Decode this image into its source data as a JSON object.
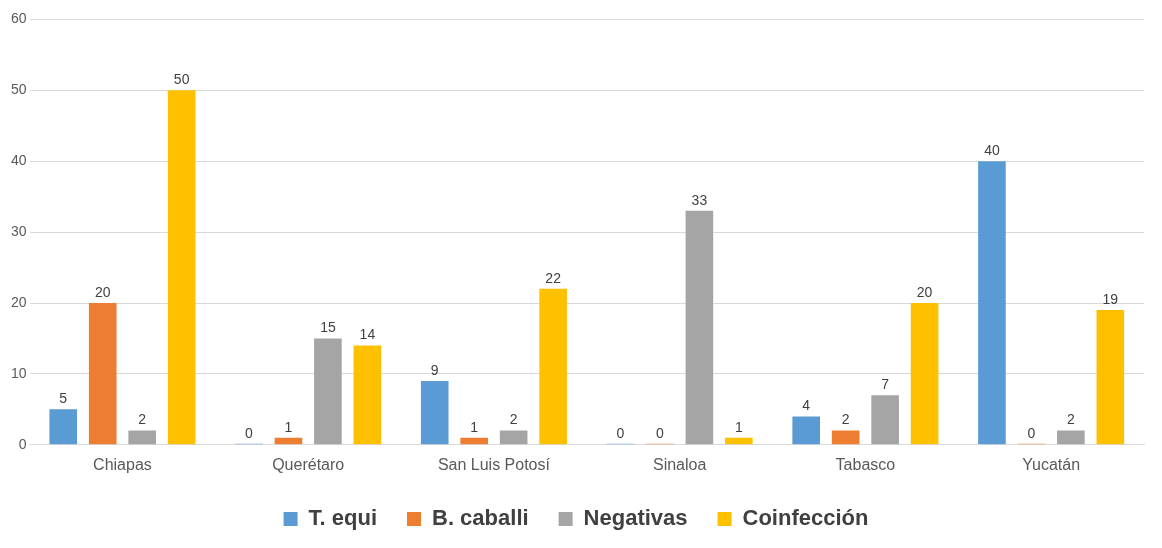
{
  "chart_data": {
    "type": "bar",
    "categories": [
      "Chiapas",
      "Querétaro",
      "San Luis Potosí",
      "Sinaloa",
      "Tabasco",
      "Yucatán"
    ],
    "series": [
      {
        "name": "T. equi",
        "color": "#5b9bd5",
        "values": [
          5,
          0,
          9,
          0,
          4,
          40
        ]
      },
      {
        "name": "B. caballi",
        "color": "#ed7d31",
        "values": [
          20,
          1,
          1,
          0,
          2,
          0
        ]
      },
      {
        "name": "Negativas",
        "color": "#a5a5a5",
        "values": [
          2,
          15,
          2,
          33,
          7,
          2
        ]
      },
      {
        "name": "Coinfección",
        "color": "#ffc000",
        "values": [
          50,
          14,
          22,
          1,
          20,
          19
        ]
      }
    ],
    "ylim": [
      0,
      60
    ],
    "yticks": [
      0,
      10,
      20,
      30,
      40,
      50,
      60
    ],
    "grid": "y",
    "legend": "bottom",
    "data_labels": true
  }
}
